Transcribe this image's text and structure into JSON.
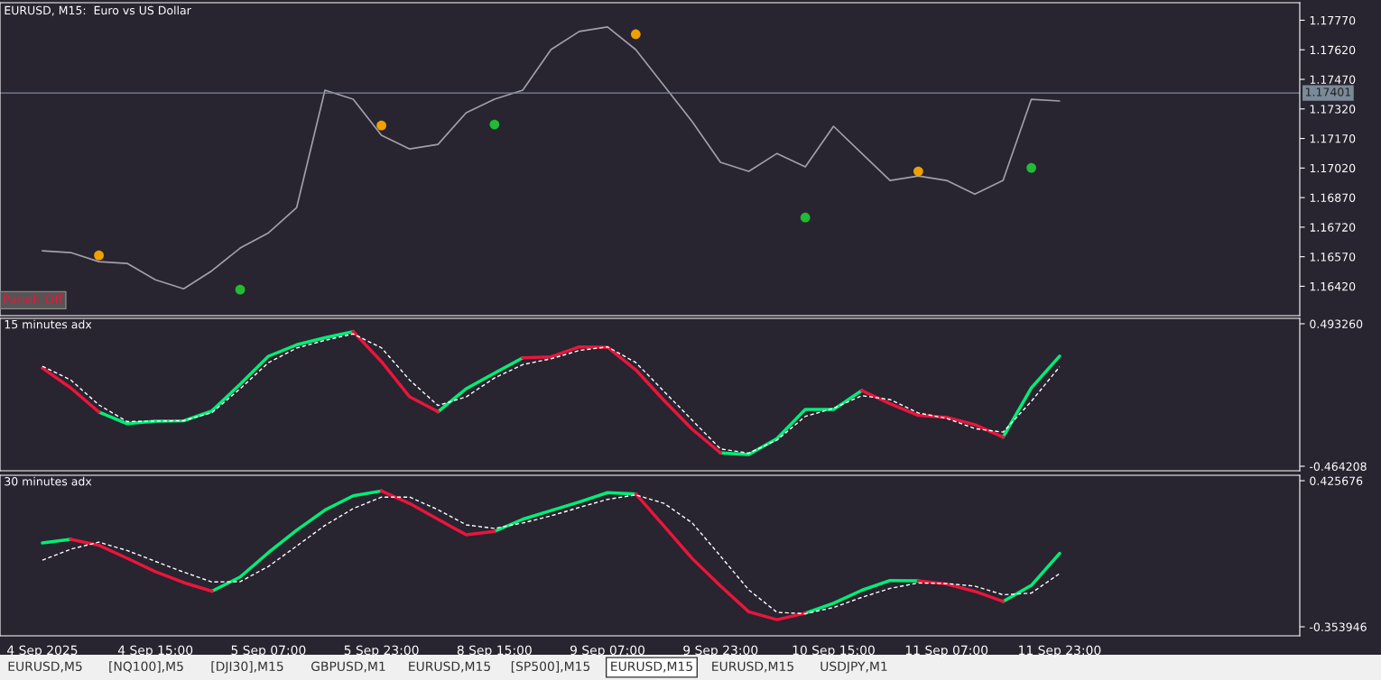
{
  "chart_data": [
    {
      "type": "line",
      "title": "EURUSD, M15:  Euro vs US Dollar",
      "annotations": [
        "Panel: Off"
      ],
      "ylim": [
        1.16271,
        1.17859
      ],
      "categories": [
        null,
        null,
        null,
        null,
        null,
        null,
        null,
        null,
        null,
        null,
        null,
        null,
        null,
        null,
        null,
        null,
        null,
        null,
        null,
        null,
        null,
        null,
        null,
        null,
        null,
        null,
        null,
        null,
        null,
        null,
        null,
        null,
        null,
        null,
        null,
        null,
        null,
        null,
        null,
        null,
        null,
        null,
        null,
        null,
        null,
        null
      ],
      "yticks": [
        {
          "value": 1.1642,
          "label": "1.16420"
        },
        {
          "value": 1.1657,
          "label": "1.16570"
        },
        {
          "value": 1.1672,
          "label": "1.16720"
        },
        {
          "value": 1.1687,
          "label": "1.16870"
        },
        {
          "value": 1.1702,
          "label": "1.17020"
        },
        {
          "value": 1.1717,
          "label": "1.17170"
        },
        {
          "value": 1.1732,
          "label": "1.17320"
        },
        {
          "value": 1.1747,
          "label": "1.17470"
        },
        {
          "value": 1.1762,
          "label": "1.17620"
        },
        {
          "value": 1.1777,
          "label": "1.17770"
        }
      ],
      "tick_labels": "y",
      "grid": false,
      "legend": false,
      "ref_lines": [
        {
          "axis": "y",
          "value": 1.17401,
          "label": "1.17401",
          "color": "#7a8a99"
        }
      ],
      "series": [
        {
          "color": "#a0a0a8",
          "values": [
            1.166,
            1.16591,
            1.16545,
            1.16536,
            1.16453,
            1.16407,
            1.16499,
            1.16614,
            1.16691,
            1.1682,
            1.17415,
            1.17369,
            1.17186,
            1.17117,
            1.1714,
            1.17301,
            1.17369,
            1.17415,
            1.17621,
            1.17713,
            1.17736,
            1.17621,
            1.17438,
            1.17255,
            1.17049,
            1.17003,
            1.17094,
            1.17026,
            1.17232,
            1.17094,
            1.16957,
            1.1698,
            1.16957,
            1.16888,
            1.16957,
            1.17369,
            1.1736,
            null,
            null,
            null,
            null,
            null,
            null,
            null,
            null,
            null
          ]
        },
        {
          "type": "scatter",
          "marker": "circle",
          "color": "#f0a000",
          "values": [
            null,
            null,
            1.16577,
            null,
            null,
            null,
            null,
            null,
            null,
            null,
            null,
            null,
            1.17236,
            null,
            null,
            null,
            null,
            null,
            null,
            null,
            null,
            1.17699,
            null,
            null,
            null,
            null,
            null,
            null,
            null,
            null,
            null,
            1.17003,
            null,
            null,
            null,
            null,
            null,
            null,
            null,
            null,
            null,
            null,
            null,
            null,
            null,
            null
          ]
        },
        {
          "type": "scatter",
          "marker": "circle",
          "color": "#22bb33",
          "values": [
            null,
            null,
            null,
            null,
            null,
            null,
            null,
            1.16403,
            null,
            null,
            null,
            null,
            null,
            null,
            null,
            null,
            1.17241,
            null,
            null,
            null,
            null,
            null,
            null,
            null,
            null,
            null,
            null,
            1.16769,
            null,
            null,
            null,
            null,
            null,
            null,
            null,
            1.17021,
            null,
            null,
            null,
            null,
            null,
            null,
            null,
            null,
            null,
            null
          ]
        }
      ]
    },
    {
      "type": "line",
      "title": "15 minutes adx",
      "ylim": [
        -0.4945,
        0.5296
      ],
      "categories": [
        null,
        null,
        null,
        null,
        null,
        null,
        null,
        null,
        null,
        null,
        null,
        null,
        null,
        null,
        null,
        null,
        null,
        null,
        null,
        null,
        null,
        null,
        null,
        null,
        null,
        null,
        null,
        null,
        null,
        null,
        null,
        null,
        null,
        null,
        null,
        null,
        null,
        null,
        null,
        null,
        null,
        null,
        null,
        null,
        null,
        null
      ],
      "yticks": [
        {
          "value": -0.464208,
          "label": "-0.464208"
        },
        {
          "value": 0.49326,
          "label": "0.493260"
        }
      ],
      "tick_labels": "y",
      "grid": false,
      "legend": false,
      "series": [
        {
          "color": "#00ee77",
          "values": [
            null,
            null,
            -0.1,
            -0.178,
            -0.161,
            -0.159,
            -0.092,
            0.087,
            0.275,
            0.352,
            0.399,
            0.441,
            null,
            null,
            -0.098,
            0.057,
            0.162,
            0.265,
            null,
            null,
            null,
            null,
            null,
            null,
            -0.375,
            -0.385,
            -0.278,
            -0.082,
            -0.083,
            0.045,
            null,
            null,
            null,
            null,
            -0.268,
            0.062,
            0.276,
            null,
            null,
            null,
            null,
            null,
            null,
            null,
            null,
            null
          ]
        },
        {
          "color": "#e8163c",
          "values": [
            0.196,
            0.063,
            -0.1,
            null,
            null,
            null,
            null,
            null,
            null,
            null,
            null,
            0.441,
            0.239,
            0.002,
            -0.098,
            null,
            null,
            0.265,
            0.271,
            0.338,
            0.336,
            0.184,
            -0.022,
            -0.216,
            -0.375,
            null,
            null,
            null,
            null,
            0.045,
            -0.044,
            -0.122,
            -0.135,
            -0.185,
            -0.268,
            null,
            null,
            null,
            null,
            null,
            null,
            null,
            null,
            null,
            null,
            null
          ]
        },
        {
          "color": "#ffffff",
          "line_style": "dashed",
          "values": [
            0.208,
            0.116,
            -0.052,
            -0.164,
            -0.161,
            -0.158,
            -0.104,
            0.057,
            0.232,
            0.33,
            0.382,
            0.425,
            0.332,
            0.115,
            -0.056,
            0.002,
            0.129,
            0.219,
            0.258,
            0.314,
            0.338,
            0.233,
            0.039,
            -0.155,
            -0.348,
            -0.376,
            -0.288,
            -0.129,
            -0.075,
            0.01,
            -0.016,
            -0.106,
            -0.142,
            -0.211,
            -0.235,
            -0.028,
            0.204,
            null,
            null,
            null,
            null,
            null,
            null,
            null,
            null,
            null
          ]
        }
      ]
    },
    {
      "type": "line",
      "title": "30 minutes adx",
      "ylim": [
        -0.4021,
        0.4546
      ],
      "categories": [
        "4 Sep 2025",
        null,
        null,
        null,
        "4 Sep 15:00",
        null,
        null,
        null,
        "5 Sep 07:00",
        null,
        null,
        null,
        "5 Sep 23:00",
        null,
        null,
        null,
        "8 Sep 15:00",
        null,
        null,
        null,
        "9 Sep 07:00",
        null,
        null,
        null,
        "9 Sep 23:00",
        null,
        null,
        null,
        "10 Sep 15:00",
        null,
        null,
        null,
        "11 Sep 07:00",
        null,
        null,
        null,
        "11 Sep 23:00",
        null,
        null,
        null,
        null,
        null,
        null,
        null,
        null,
        null
      ],
      "yticks": [
        {
          "value": -0.353946,
          "label": "-0.353946"
        },
        {
          "value": 0.425676,
          "label": "0.425676"
        }
      ],
      "grid": false,
      "legend": false,
      "annotations": [
        "EURUSD,M5",
        "[NQ100],M5",
        "[DJI30],M15",
        "GBPUSD,M1",
        "EURUSD,M15",
        "[SP500],M15",
        "EURUSD,M15",
        "EURUSD,M15",
        "USDJPY,M1"
      ],
      "series": [
        {
          "color": "#00ee77",
          "values": [
            0.094,
            0.113,
            null,
            null,
            null,
            null,
            -0.164,
            -0.088,
            0.042,
            0.162,
            0.269,
            0.345,
            0.371,
            null,
            null,
            null,
            0.155,
            0.22,
            0.266,
            0.312,
            0.362,
            0.355,
            null,
            null,
            null,
            null,
            null,
            -0.281,
            -0.228,
            -0.159,
            -0.107,
            -0.108,
            null,
            null,
            -0.219,
            -0.133,
            0.038,
            null,
            null,
            null,
            null,
            null,
            null,
            null,
            null,
            null
          ]
        },
        {
          "color": "#e8163c",
          "values": [
            null,
            0.113,
            0.081,
            0.012,
            -0.06,
            -0.118,
            -0.164,
            null,
            null,
            null,
            null,
            null,
            0.371,
            0.304,
            0.22,
            0.137,
            0.155,
            null,
            null,
            null,
            null,
            0.355,
            0.183,
            0.01,
            -0.136,
            -0.274,
            -0.316,
            -0.281,
            null,
            null,
            null,
            -0.108,
            -0.126,
            -0.165,
            -0.219,
            null,
            null,
            null,
            null,
            null,
            null,
            null,
            null,
            null,
            null,
            null
          ]
        },
        {
          "color": "#ffffff",
          "line_style": "dashed",
          "values": [
            0.002,
            0.06,
            0.098,
            0.053,
            -0.005,
            -0.062,
            -0.115,
            -0.113,
            -0.032,
            0.077,
            0.187,
            0.277,
            0.338,
            0.338,
            0.271,
            0.19,
            0.171,
            0.2,
            0.238,
            0.283,
            0.326,
            0.35,
            0.305,
            0.2,
            0.023,
            -0.157,
            -0.277,
            -0.284,
            -0.251,
            -0.197,
            -0.149,
            -0.12,
            -0.123,
            -0.137,
            -0.183,
            -0.174,
            -0.07,
            null,
            null,
            null,
            null,
            null,
            null,
            null,
            null,
            null
          ]
        }
      ]
    }
  ]
}
